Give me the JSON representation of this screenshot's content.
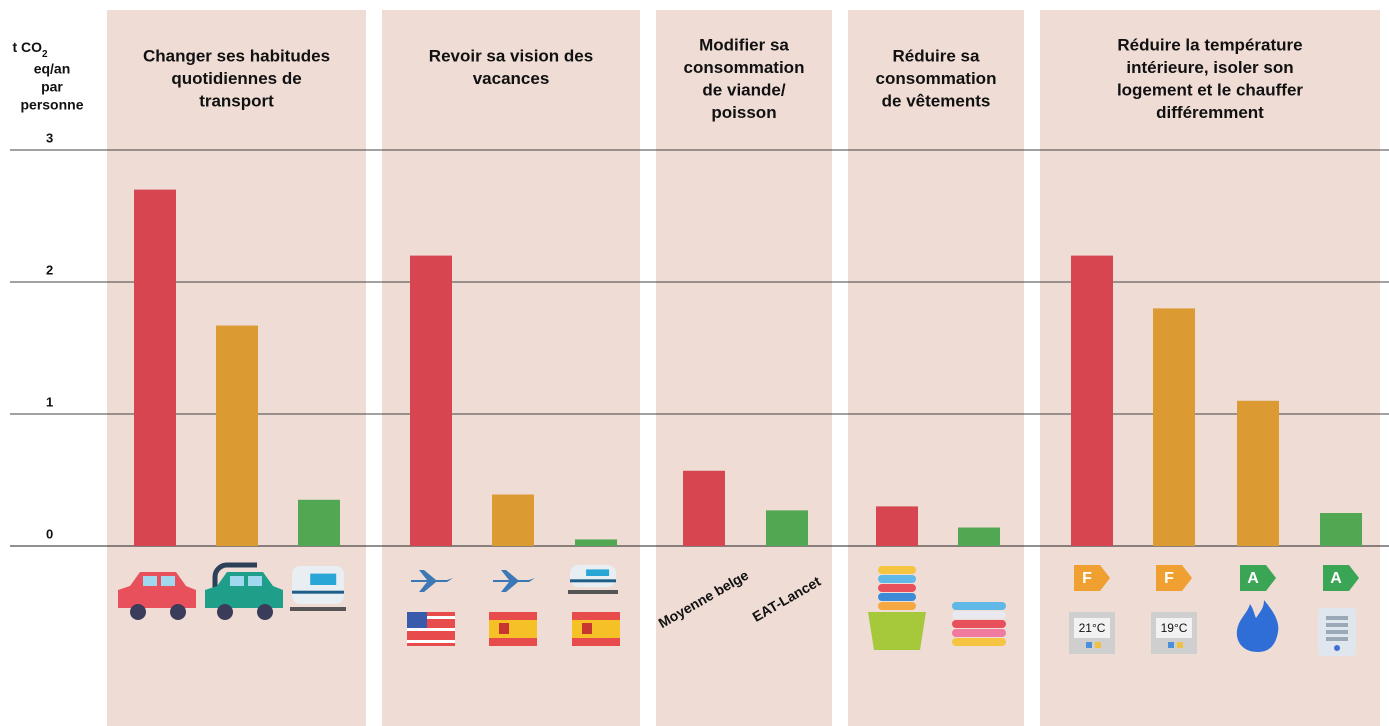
{
  "chart_data": {
    "type": "bar",
    "y_label": [
      "t CO",
      "2",
      "eq/an",
      "par",
      "personne"
    ],
    "ylim": [
      0,
      3
    ],
    "yticks": [
      0,
      1,
      2,
      3
    ],
    "grid": true,
    "groups": [
      {
        "title": [
          "Changer ses habitudes",
          "quotidiennes de",
          "transport"
        ],
        "categories": [
          null,
          null,
          null
        ],
        "values": [
          2.7,
          1.67,
          0.35
        ],
        "colors": [
          "#d64550",
          "#dc9a32",
          "#52a852"
        ]
      },
      {
        "title": [
          "Revoir sa vision des",
          "vacances"
        ],
        "categories": [
          null,
          null,
          null
        ],
        "values": [
          2.2,
          0.39,
          0.05
        ],
        "colors": [
          "#d64550",
          "#dc9a32",
          "#52a852"
        ]
      },
      {
        "title": [
          "Modifier sa",
          "consommation",
          "de viande/",
          "poisson"
        ],
        "categories": [
          "Moyenne belge",
          "EAT-Lancet"
        ],
        "values": [
          0.57,
          0.27
        ],
        "colors": [
          "#d64550",
          "#52a852"
        ]
      },
      {
        "title": [
          "Réduire sa",
          "consommation",
          "de vêtements"
        ],
        "categories": [
          null,
          null
        ],
        "values": [
          0.3,
          0.14
        ],
        "colors": [
          "#d64550",
          "#52a852"
        ]
      },
      {
        "title": [
          "Réduire la température",
          "intérieure, isoler son",
          "logement et le chauffer",
          "différemment"
        ],
        "categories": [
          null,
          null,
          null,
          null
        ],
        "values": [
          2.2,
          1.8,
          1.1,
          0.25
        ],
        "colors": [
          "#d64550",
          "#dc9a32",
          "#dc9a32",
          "#52a852"
        ],
        "badges": [
          "F",
          "F",
          "A",
          "A"
        ],
        "thermostats": [
          "21°C",
          "19°C"
        ]
      }
    ]
  }
}
